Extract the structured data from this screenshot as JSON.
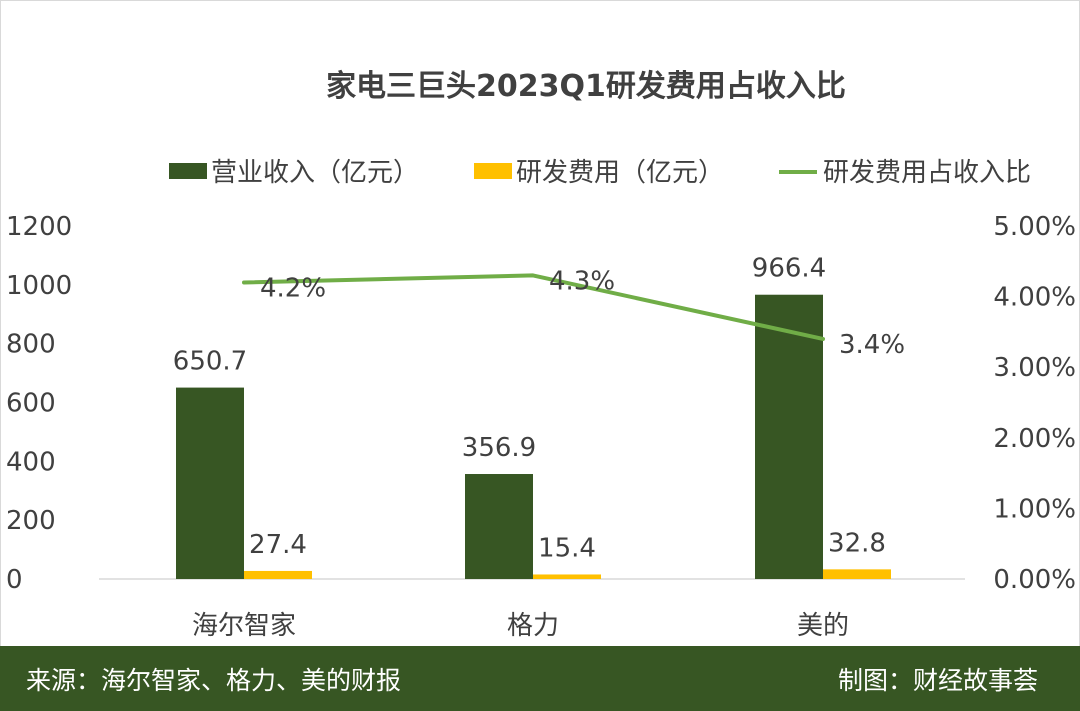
{
  "chart_data": {
    "type": "bar",
    "title": "家电三巨头2023Q1研发费用占收入比",
    "categories": [
      "海尔智家",
      "格力",
      "美的"
    ],
    "series": [
      {
        "name": "营业收入（亿元）",
        "kind": "bar",
        "axis": "left",
        "color": "#375623",
        "values": [
          650.7,
          356.9,
          966.4
        ],
        "labels": [
          "650.7",
          "356.9",
          "966.4"
        ]
      },
      {
        "name": "研发费用（亿元）",
        "kind": "bar",
        "axis": "left",
        "color": "#ffc000",
        "values": [
          27.4,
          15.4,
          32.8
        ],
        "labels": [
          "27.4",
          "15.4",
          "32.8"
        ]
      },
      {
        "name": "研发费用占收入比",
        "kind": "line",
        "axis": "right",
        "color": "#70ad47",
        "values": [
          0.042,
          0.043,
          0.034
        ],
        "labels": [
          "4.2%",
          "4.3%",
          "3.4%"
        ]
      }
    ],
    "y_left": {
      "min": 0,
      "max": 1200,
      "ticks": [
        "0",
        "200",
        "400",
        "600",
        "800",
        "1000",
        "1200"
      ]
    },
    "y_right": {
      "min": 0,
      "max": 0.05,
      "ticks": [
        "0.00%",
        "1.00%",
        "2.00%",
        "3.00%",
        "4.00%",
        "5.00%"
      ]
    },
    "legend_position": "top",
    "grid": false
  },
  "footer": {
    "source": "来源：海尔智家、格力、美的财报",
    "credit": "制图：财经故事荟"
  }
}
